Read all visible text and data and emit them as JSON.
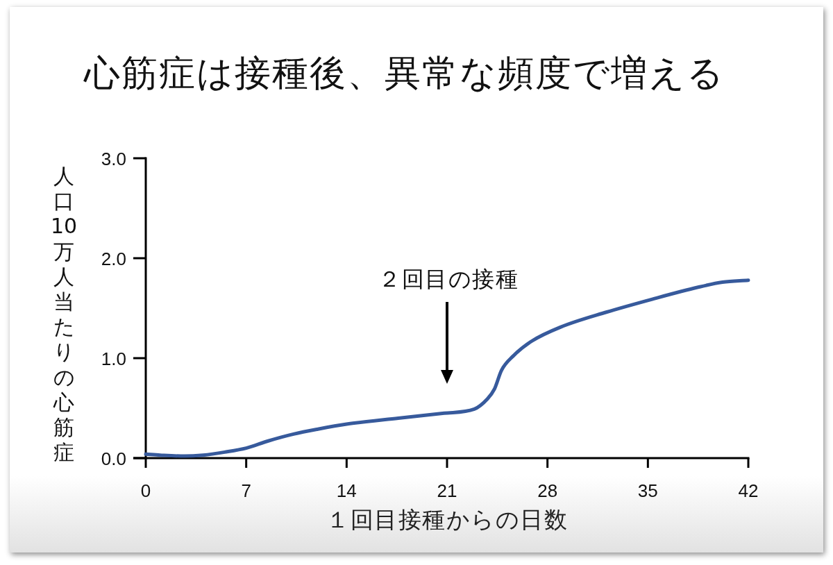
{
  "chart_data": {
    "type": "line",
    "title": "心筋症は接種後、異常な頻度で増える",
    "xlabel": "１回目接種からの日数",
    "ylabel": "人口10万人当たりの心筋症",
    "x": [
      0,
      1,
      2.7,
      4,
      5.5,
      7,
      8.5,
      10.3,
      12,
      14,
      17.6,
      20.8,
      22.9,
      23.8,
      24.3,
      24.8,
      25.6,
      26.9,
      28.9,
      32.1,
      35.3,
      38.5,
      40.2,
      42
    ],
    "series": [
      {
        "color": "#375a9c",
        "values": [
          0.04,
          0.03,
          0.02,
          0.03,
          0.06,
          0.1,
          0.17,
          0.24,
          0.29,
          0.34,
          0.4,
          0.45,
          0.49,
          0.59,
          0.69,
          0.88,
          1.02,
          1.17,
          1.31,
          1.46,
          1.59,
          1.71,
          1.76,
          1.78
        ]
      }
    ],
    "xlim": [
      0,
      42
    ],
    "xticks": [
      0,
      7,
      14,
      21,
      28,
      35,
      42
    ],
    "ylim": [
      0,
      3
    ],
    "yticks": [
      {
        "value": 0,
        "label": "0.0"
      },
      {
        "value": 1,
        "label": "1.0"
      },
      {
        "value": 2,
        "label": "2.0"
      },
      {
        "value": 3,
        "label": "3.0"
      }
    ],
    "annotations": [
      "２回目の接種"
    ],
    "line_style": "solid"
  }
}
